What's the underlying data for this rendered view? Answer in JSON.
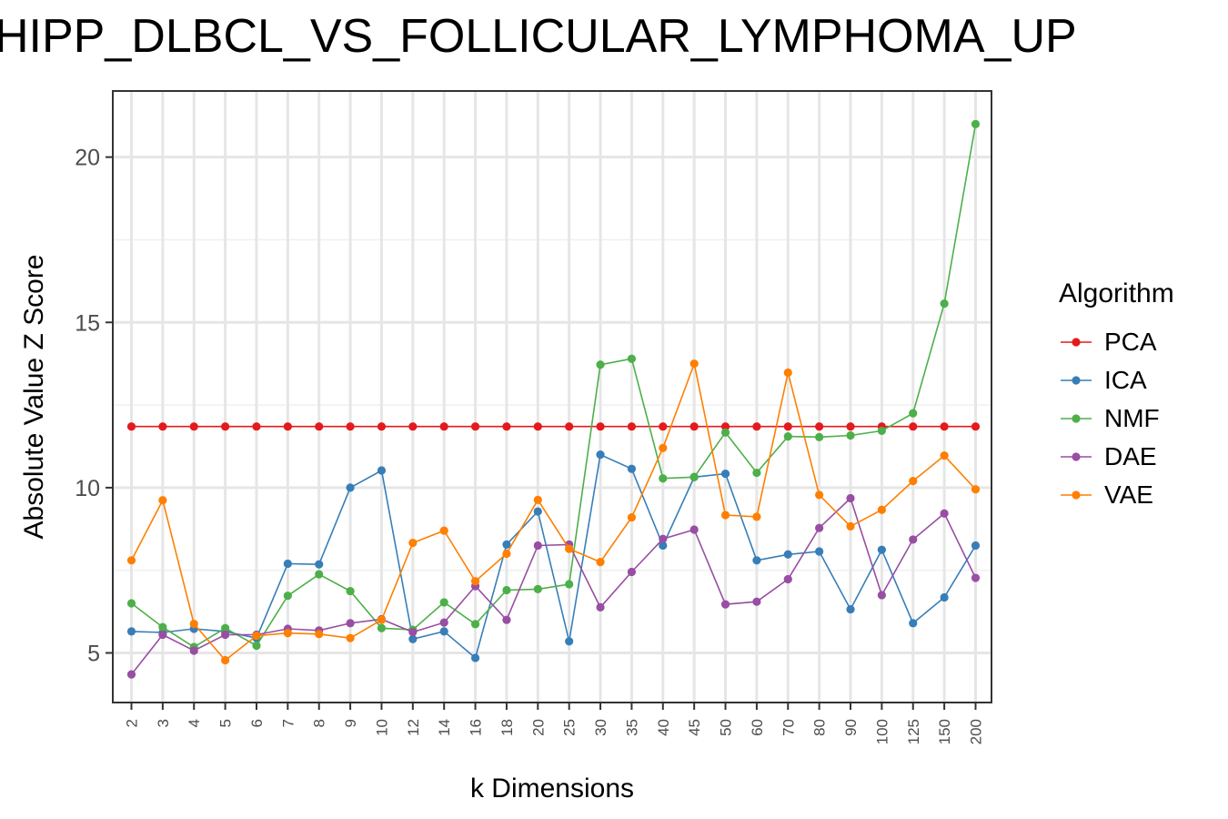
{
  "chart_data": {
    "type": "line",
    "title": "HIPP_DLBCL_VS_FOLLICULAR_LYMPHOMA_UP",
    "xlabel": "k Dimensions",
    "ylabel": "Absolute Value Z Score",
    "categories": [
      "2",
      "3",
      "4",
      "5",
      "6",
      "7",
      "8",
      "9",
      "10",
      "12",
      "14",
      "16",
      "18",
      "20",
      "25",
      "30",
      "35",
      "40",
      "45",
      "50",
      "60",
      "70",
      "80",
      "90",
      "100",
      "125",
      "150",
      "200"
    ],
    "ylim": [
      3.5,
      22
    ],
    "yticks": [
      5,
      10,
      15,
      20
    ],
    "grid": true,
    "legend_title": "Algorithm",
    "legend_position": "right",
    "series": [
      {
        "name": "PCA",
        "color": "#E41A1C",
        "values": [
          11.85,
          11.85,
          11.85,
          11.85,
          11.85,
          11.85,
          11.85,
          11.85,
          11.85,
          11.85,
          11.85,
          11.85,
          11.85,
          11.85,
          11.85,
          11.85,
          11.85,
          11.85,
          11.85,
          11.85,
          11.85,
          11.85,
          11.85,
          11.85,
          11.85,
          11.85,
          11.85,
          11.85
        ]
      },
      {
        "name": "ICA",
        "color": "#377EB8",
        "values": [
          5.65,
          5.62,
          5.73,
          5.65,
          5.45,
          7.7,
          7.68,
          10.0,
          10.52,
          5.42,
          5.65,
          4.85,
          8.28,
          9.28,
          5.35,
          11.0,
          10.57,
          8.25,
          10.32,
          10.42,
          7.8,
          7.98,
          8.07,
          6.32,
          8.12,
          5.9,
          6.68,
          8.25
        ]
      },
      {
        "name": "NMF",
        "color": "#4DAF4A",
        "values": [
          6.5,
          5.78,
          5.18,
          5.75,
          5.22,
          6.73,
          7.38,
          6.87,
          5.75,
          5.7,
          6.53,
          5.87,
          6.9,
          6.93,
          7.08,
          13.72,
          13.9,
          10.28,
          10.32,
          11.67,
          10.45,
          11.55,
          11.53,
          11.58,
          11.72,
          12.25,
          15.57,
          21.0
        ]
      },
      {
        "name": "DAE",
        "color": "#984EA3",
        "values": [
          4.35,
          5.55,
          5.07,
          5.55,
          5.55,
          5.73,
          5.68,
          5.9,
          6.02,
          5.63,
          5.92,
          7.02,
          6.0,
          8.25,
          8.28,
          6.38,
          7.45,
          8.45,
          8.73,
          6.47,
          6.55,
          7.23,
          8.78,
          9.68,
          6.75,
          8.43,
          9.22,
          7.27
        ]
      },
      {
        "name": "VAE",
        "color": "#FF7F00",
        "values": [
          7.8,
          9.62,
          5.88,
          4.78,
          5.52,
          5.6,
          5.57,
          5.45,
          6.0,
          8.33,
          8.7,
          7.17,
          8.0,
          9.63,
          8.15,
          7.75,
          9.1,
          11.2,
          13.75,
          9.17,
          9.12,
          13.48,
          9.78,
          8.83,
          9.33,
          10.2,
          10.97,
          9.95
        ]
      }
    ]
  }
}
